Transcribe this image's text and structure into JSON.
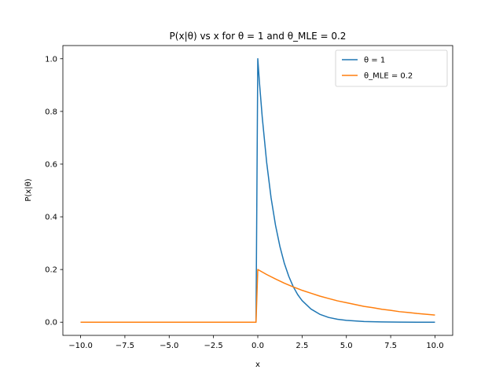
{
  "chart_data": {
    "type": "line",
    "title": "P(x|θ) vs x for θ = 1 and θ_MLE = 0.2",
    "xlabel": "x",
    "ylabel": "P(x|θ)",
    "xlim": [
      -11.0,
      11.0
    ],
    "ylim": [
      -0.05,
      1.05
    ],
    "xticks": [
      -10.0,
      -7.5,
      -5.0,
      -2.5,
      0.0,
      2.5,
      5.0,
      7.5,
      10.0
    ],
    "xtick_labels": [
      "−10.0",
      "−7.5",
      "−5.0",
      "−2.5",
      "0.0",
      "2.5",
      "5.0",
      "7.5",
      "10.0"
    ],
    "yticks": [
      0.0,
      0.2,
      0.4,
      0.6,
      0.8,
      1.0
    ],
    "ytick_labels": [
      "0.0",
      "0.2",
      "0.4",
      "0.6",
      "0.8",
      "1.0"
    ],
    "grid": false,
    "legend_position": "top-right",
    "series": [
      {
        "name": "θ = 1",
        "color": "#1f77b4",
        "x": [
          -10,
          -0.1,
          0,
          0.1,
          0.25,
          0.5,
          0.75,
          1,
          1.25,
          1.5,
          1.75,
          2,
          2.25,
          2.5,
          3,
          3.5,
          4,
          4.5,
          5,
          6,
          7,
          8,
          9,
          10
        ],
        "y": [
          0,
          0,
          1.0,
          0.905,
          0.779,
          0.607,
          0.472,
          0.368,
          0.287,
          0.223,
          0.174,
          0.135,
          0.105,
          0.082,
          0.05,
          0.03,
          0.018,
          0.011,
          0.007,
          0.0025,
          0.0009,
          0.0003,
          0.0001,
          5e-05
        ]
      },
      {
        "name": "θ_MLE = 0.2",
        "color": "#ff7f0e",
        "x": [
          -10,
          -0.1,
          0,
          0.5,
          1,
          1.5,
          2,
          2.5,
          3,
          3.5,
          4,
          4.5,
          5,
          5.5,
          6,
          6.5,
          7,
          7.5,
          8,
          8.5,
          9,
          9.5,
          10
        ],
        "y": [
          0,
          0,
          0.2,
          0.181,
          0.164,
          0.148,
          0.134,
          0.121,
          0.11,
          0.099,
          0.09,
          0.081,
          0.074,
          0.067,
          0.06,
          0.055,
          0.049,
          0.045,
          0.04,
          0.037,
          0.033,
          0.03,
          0.027
        ]
      }
    ]
  }
}
